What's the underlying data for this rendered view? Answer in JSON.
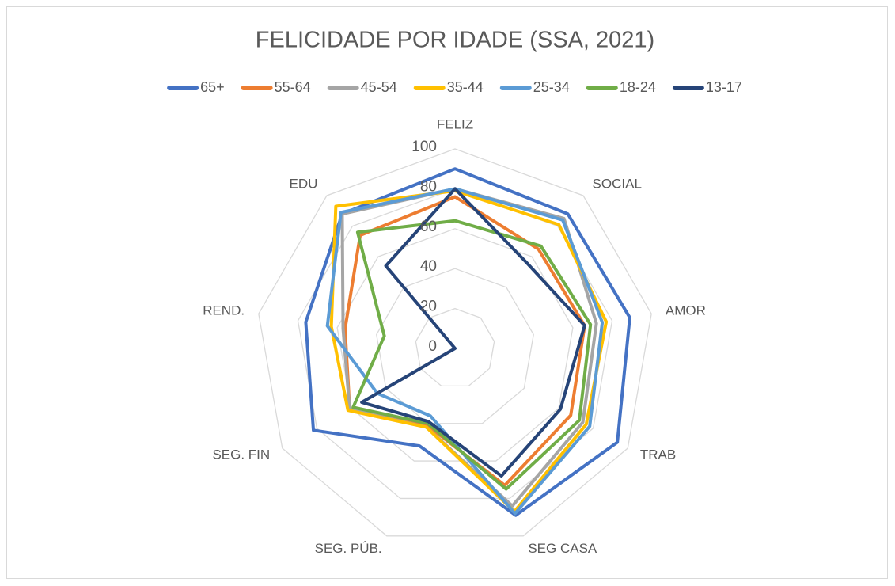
{
  "chart_data": {
    "type": "radar",
    "title": "FELICIDADE POR IDADE (SSA, 2021)",
    "categories": [
      "FELIZ",
      "SOCIAL",
      "AMOR",
      "TRAB",
      "SEG CASA",
      "SEG. PÚB.",
      "SEG. FIN",
      "REND.",
      "EDU"
    ],
    "ylim": [
      0,
      100
    ],
    "yticks": [
      0,
      20,
      40,
      60,
      80,
      100
    ],
    "grid": true,
    "legend": "top",
    "series": [
      {
        "name": "65+",
        "color": "#4472C4",
        "values": [
          90,
          88,
          89,
          94,
          89,
          52,
          82,
          76,
          88
        ]
      },
      {
        "name": "55-64",
        "color": "#ED7D31",
        "values": [
          76,
          65,
          66,
          67,
          73,
          41,
          61,
          56,
          74
        ]
      },
      {
        "name": "45-54",
        "color": "#A5A5A5",
        "values": [
          80,
          85,
          72,
          74,
          84,
          42,
          61,
          57,
          88
        ]
      },
      {
        "name": "35-44",
        "color": "#FFC000",
        "values": [
          79,
          81,
          77,
          76,
          87,
          42,
          62,
          63,
          93
        ]
      },
      {
        "name": "25-34",
        "color": "#5B9BD5",
        "values": [
          80,
          84,
          75,
          78,
          88,
          36,
          45,
          65,
          89
        ]
      },
      {
        "name": "18-24",
        "color": "#70AD47",
        "values": [
          64,
          67,
          69,
          72,
          75,
          40,
          59,
          36,
          76
        ]
      },
      {
        "name": "13-17",
        "color": "#264478",
        "values": [
          80,
          56,
          66,
          61,
          68,
          39,
          54,
          0,
          54
        ]
      }
    ]
  }
}
